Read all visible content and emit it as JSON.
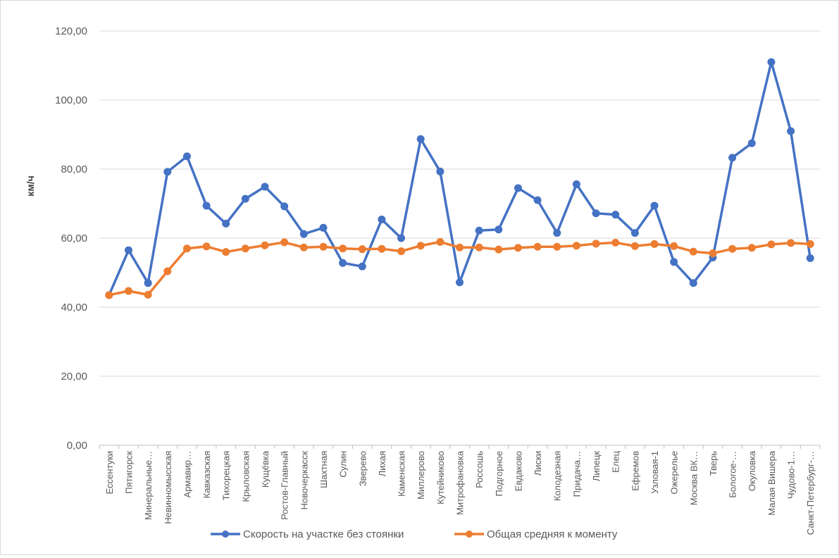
{
  "chart_data": {
    "type": "line",
    "title": "",
    "xlabel": "",
    "ylabel": "км/ч",
    "ylim": [
      0,
      120
    ],
    "yticks": [
      "0,00",
      "20,00",
      "40,00",
      "60,00",
      "80,00",
      "100,00",
      "120,00"
    ],
    "ytick_values": [
      0,
      20,
      40,
      60,
      80,
      100,
      120
    ],
    "grid": true,
    "legend_position": "bottom",
    "categories": [
      "Ессентуки",
      "Пятигорск",
      "Минеральные…",
      "Невинномысская",
      "Армавир…",
      "Кавказская",
      "Тихорецкая",
      "Крыловская",
      "Кущёвка",
      "Ростов-Главный",
      "Новочеркасск",
      "Шахтная",
      "Сулин",
      "Зверево",
      "Лихая",
      "Каменская",
      "Миллерово",
      "Кутейниково",
      "Митрофановка",
      "Россошь",
      "Подгорное",
      "Евдаково",
      "Лиски",
      "Колодезная",
      "Придача…",
      "Липецк",
      "Елец",
      "Ефремов",
      "Узловая-1",
      "Ожерелье",
      "Москва ВК…",
      "Тверь",
      "Бологое-…",
      "Окуловка",
      "Малая Вишера",
      "Чудово-1…",
      "Санкт-Петербург-…"
    ],
    "series": [
      {
        "name": "Скорость на участке без стоянки",
        "color": "#4472c4",
        "values": [
          43.5,
          56.5,
          47,
          79.2,
          83.7,
          69.4,
          64.2,
          71.4,
          74.9,
          69.2,
          61.2,
          63,
          52.8,
          51.8,
          65.4,
          60,
          88.7,
          79.3,
          47.2,
          62.2,
          62.5,
          74.5,
          71,
          61.5,
          75.6,
          67.2,
          66.8,
          61.5,
          69.4,
          53.1,
          47,
          54.4,
          83.3,
          87.5,
          111,
          91,
          54.2
        ]
      },
      {
        "name": "Общая средняя к моменту",
        "color": "#ed7d31",
        "values": [
          43.5,
          44.7,
          43.6,
          50.4,
          57,
          57.6,
          56,
          57,
          57.9,
          58.8,
          57.3,
          57.5,
          57,
          56.8,
          56.9,
          56.2,
          57.8,
          58.9,
          57.3,
          57.3,
          56.7,
          57.2,
          57.5,
          57.5,
          57.8,
          58.4,
          58.7,
          57.7,
          58.3,
          57.7,
          56.1,
          55.6,
          56.9,
          57.2,
          58.2,
          58.6,
          58.3
        ]
      }
    ]
  }
}
